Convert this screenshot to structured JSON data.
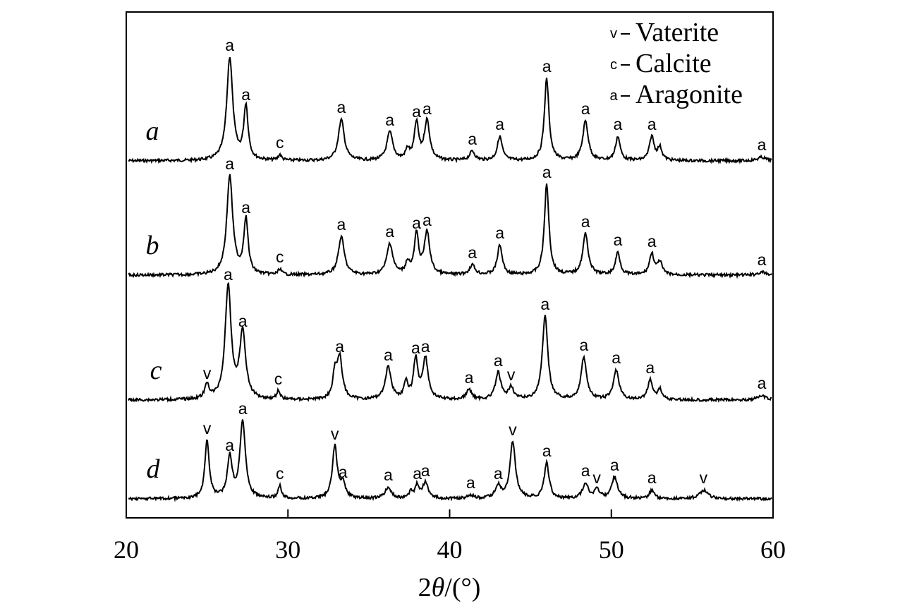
{
  "chart_data": {
    "type": "line",
    "title": "",
    "xlabel": "2θ/(°)",
    "xlabel_parts": {
      "num": "2",
      "theta": "θ",
      "unit": "/(°)"
    },
    "ylabel": "",
    "xlim": [
      20,
      60
    ],
    "xticks": [
      20,
      30,
      40,
      50,
      60
    ],
    "y_axis_ticks": false,
    "grid": false,
    "legend_position": "top-right",
    "legend": [
      {
        "symbol": "v",
        "label": "Vaterite"
      },
      {
        "symbol": "c",
        "label": "Calcite"
      },
      {
        "symbol": "a",
        "label": "Aragonite"
      }
    ],
    "series": [
      {
        "name": "a",
        "baseline": 228,
        "peaks": [
          {
            "x": 26.4,
            "h": 146,
            "w": 0.22,
            "label": "a"
          },
          {
            "x": 27.4,
            "h": 76,
            "w": 0.16,
            "label": "a"
          },
          {
            "x": 29.5,
            "h": 8,
            "w": 0.12,
            "label": "c"
          },
          {
            "x": 33.3,
            "h": 58,
            "w": 0.22,
            "label": "a"
          },
          {
            "x": 36.3,
            "h": 40,
            "w": 0.22,
            "label": "a"
          },
          {
            "x": 37.4,
            "h": 14,
            "w": 0.15,
            "label": ""
          },
          {
            "x": 37.95,
            "h": 52,
            "w": 0.16,
            "label": "a"
          },
          {
            "x": 38.6,
            "h": 56,
            "w": 0.2,
            "label": "a"
          },
          {
            "x": 41.4,
            "h": 13,
            "w": 0.2,
            "label": "a"
          },
          {
            "x": 43.1,
            "h": 34,
            "w": 0.18,
            "label": "a"
          },
          {
            "x": 46.0,
            "h": 116,
            "w": 0.17,
            "label": "a"
          },
          {
            "x": 48.4,
            "h": 56,
            "w": 0.2,
            "label": "a"
          },
          {
            "x": 50.4,
            "h": 34,
            "w": 0.17,
            "label": "a"
          },
          {
            "x": 52.5,
            "h": 34,
            "w": 0.17,
            "label": "a"
          },
          {
            "x": 53.0,
            "h": 18,
            "w": 0.17,
            "label": ""
          },
          {
            "x": 59.3,
            "h": 5,
            "w": 0.3,
            "label": "a"
          }
        ]
      },
      {
        "name": "b",
        "baseline": 390,
        "peaks": [
          {
            "x": 26.4,
            "h": 140,
            "w": 0.22,
            "label": "a"
          },
          {
            "x": 27.4,
            "h": 78,
            "w": 0.16,
            "label": "a"
          },
          {
            "x": 29.5,
            "h": 8,
            "w": 0.12,
            "label": "c"
          },
          {
            "x": 33.3,
            "h": 54,
            "w": 0.22,
            "label": "a"
          },
          {
            "x": 36.3,
            "h": 44,
            "w": 0.22,
            "label": "a"
          },
          {
            "x": 37.4,
            "h": 16,
            "w": 0.15,
            "label": ""
          },
          {
            "x": 37.95,
            "h": 56,
            "w": 0.16,
            "label": "a"
          },
          {
            "x": 38.6,
            "h": 60,
            "w": 0.2,
            "label": "a"
          },
          {
            "x": 41.4,
            "h": 14,
            "w": 0.2,
            "label": "a"
          },
          {
            "x": 43.1,
            "h": 42,
            "w": 0.18,
            "label": "a"
          },
          {
            "x": 46.0,
            "h": 128,
            "w": 0.17,
            "label": "a"
          },
          {
            "x": 48.4,
            "h": 58,
            "w": 0.2,
            "label": "a"
          },
          {
            "x": 50.4,
            "h": 32,
            "w": 0.17,
            "label": "a"
          },
          {
            "x": 52.5,
            "h": 30,
            "w": 0.17,
            "label": "a"
          },
          {
            "x": 53.0,
            "h": 18,
            "w": 0.17,
            "label": ""
          },
          {
            "x": 59.3,
            "h": 4,
            "w": 0.3,
            "label": "a"
          }
        ]
      },
      {
        "name": "c",
        "baseline": 567,
        "peaks": [
          {
            "x": 25.0,
            "h": 20,
            "w": 0.16,
            "label": "v"
          },
          {
            "x": 26.3,
            "h": 160,
            "w": 0.22,
            "label": "a"
          },
          {
            "x": 27.2,
            "h": 94,
            "w": 0.22,
            "label": "a"
          },
          {
            "x": 29.4,
            "h": 12,
            "w": 0.12,
            "label": "c"
          },
          {
            "x": 32.9,
            "h": 34,
            "w": 0.15,
            "label": ""
          },
          {
            "x": 33.2,
            "h": 58,
            "w": 0.2,
            "label": "a"
          },
          {
            "x": 36.2,
            "h": 46,
            "w": 0.22,
            "label": "a"
          },
          {
            "x": 37.3,
            "h": 22,
            "w": 0.15,
            "label": ""
          },
          {
            "x": 37.9,
            "h": 56,
            "w": 0.16,
            "label": "a"
          },
          {
            "x": 38.5,
            "h": 58,
            "w": 0.2,
            "label": "a"
          },
          {
            "x": 41.2,
            "h": 14,
            "w": 0.2,
            "label": "a"
          },
          {
            "x": 43.0,
            "h": 38,
            "w": 0.2,
            "label": "a"
          },
          {
            "x": 43.8,
            "h": 18,
            "w": 0.18,
            "label": "v"
          },
          {
            "x": 45.9,
            "h": 118,
            "w": 0.2,
            "label": "a"
          },
          {
            "x": 48.3,
            "h": 60,
            "w": 0.2,
            "label": "a"
          },
          {
            "x": 50.3,
            "h": 42,
            "w": 0.2,
            "label": "a"
          },
          {
            "x": 52.4,
            "h": 28,
            "w": 0.18,
            "label": "a"
          },
          {
            "x": 53.0,
            "h": 14,
            "w": 0.17,
            "label": ""
          },
          {
            "x": 59.3,
            "h": 6,
            "w": 0.3,
            "label": "a"
          }
        ]
      },
      {
        "name": "d",
        "baseline": 707,
        "peaks": [
          {
            "x": 25.0,
            "h": 82,
            "w": 0.16,
            "label": "v"
          },
          {
            "x": 26.4,
            "h": 58,
            "w": 0.18,
            "label": "a"
          },
          {
            "x": 27.2,
            "h": 110,
            "w": 0.2,
            "label": "a"
          },
          {
            "x": 29.5,
            "h": 18,
            "w": 0.12,
            "label": "c"
          },
          {
            "x": 32.9,
            "h": 74,
            "w": 0.18,
            "label": "v"
          },
          {
            "x": 33.4,
            "h": 20,
            "w": 0.18,
            "label": "a"
          },
          {
            "x": 36.2,
            "h": 16,
            "w": 0.22,
            "label": "a"
          },
          {
            "x": 37.6,
            "h": 8,
            "w": 0.15,
            "label": ""
          },
          {
            "x": 38.0,
            "h": 18,
            "w": 0.16,
            "label": "a"
          },
          {
            "x": 38.5,
            "h": 22,
            "w": 0.2,
            "label": "a"
          },
          {
            "x": 41.3,
            "h": 5,
            "w": 0.2,
            "label": "a"
          },
          {
            "x": 43.0,
            "h": 18,
            "w": 0.2,
            "label": "a"
          },
          {
            "x": 43.9,
            "h": 80,
            "w": 0.2,
            "label": "v"
          },
          {
            "x": 46.0,
            "h": 50,
            "w": 0.18,
            "label": "a"
          },
          {
            "x": 48.4,
            "h": 22,
            "w": 0.2,
            "label": "a"
          },
          {
            "x": 49.1,
            "h": 12,
            "w": 0.2,
            "label": "v"
          },
          {
            "x": 50.2,
            "h": 30,
            "w": 0.22,
            "label": "a"
          },
          {
            "x": 52.5,
            "h": 12,
            "w": 0.18,
            "label": "a"
          },
          {
            "x": 55.7,
            "h": 12,
            "w": 0.3,
            "label": "v"
          }
        ]
      }
    ]
  }
}
